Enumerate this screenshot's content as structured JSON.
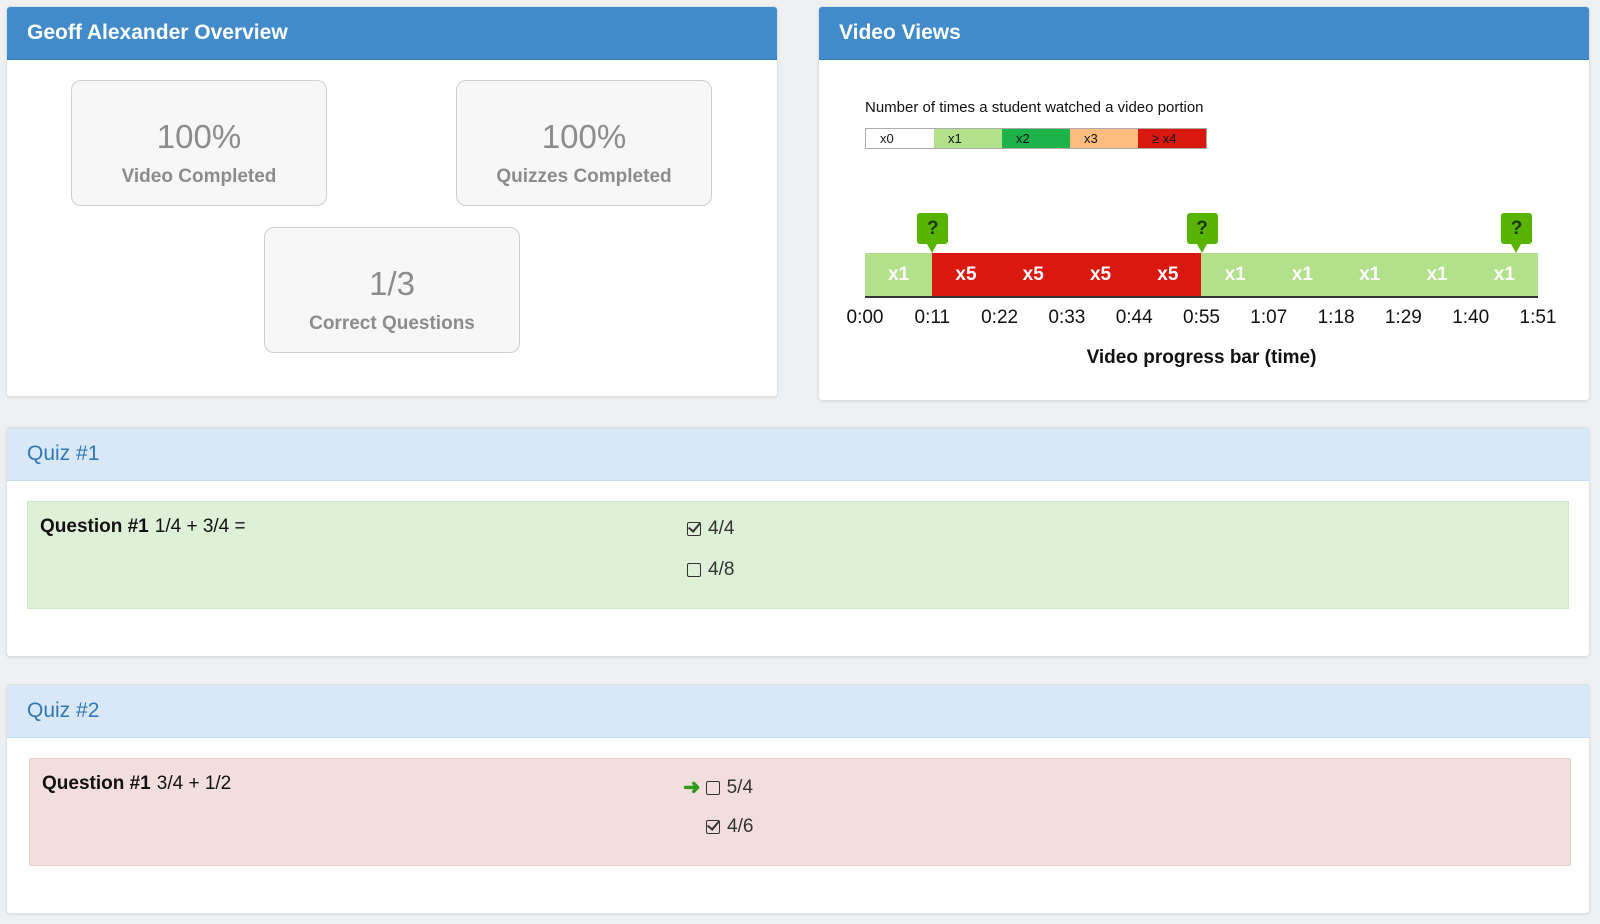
{
  "overview": {
    "title": "Geoff Alexander Overview",
    "stats": [
      {
        "value": "100%",
        "label": "Video Completed"
      },
      {
        "value": "100%",
        "label": "Quizzes Completed"
      },
      {
        "value": "1/3",
        "label": "Correct Questions"
      }
    ]
  },
  "video_views": {
    "title": "Video Views",
    "legend_title": "Number of times a student watched a video portion",
    "legend": [
      {
        "label": "x0",
        "color": "#ffffff"
      },
      {
        "label": "x1",
        "color": "#b3e08a"
      },
      {
        "label": "x2",
        "color": "#1db34a"
      },
      {
        "label": "x3",
        "color": "#fdbd7f"
      },
      {
        "label": "≥ x4",
        "color": "#d91810"
      }
    ],
    "segments": [
      "x1",
      "x5",
      "x5",
      "x5",
      "x5",
      "x1",
      "x1",
      "x1",
      "x1",
      "x1"
    ],
    "segment_colors": {
      "x1": "#b3e08a",
      "x5": "#d91810"
    },
    "ticks": [
      "0:00",
      "0:11",
      "0:22",
      "0:33",
      "0:44",
      "0:55",
      "1:07",
      "1:18",
      "1:29",
      "1:40",
      "1:51"
    ],
    "quiz_marker_symbol": "?",
    "quiz_marker_times": [
      "0:11",
      "0:55",
      "1:51"
    ],
    "x_axis_label": "Video progress bar (time)"
  },
  "quizzes": [
    {
      "title": "Quiz #1",
      "question_label": "Question #1",
      "question_text": "1/4 + 3/4 =",
      "result": "correct",
      "options": [
        {
          "text": "4/4",
          "checked": true,
          "correct_marker": false
        },
        {
          "text": "4/8",
          "checked": false,
          "correct_marker": false
        }
      ]
    },
    {
      "title": "Quiz #2",
      "question_label": "Question #1",
      "question_text": "3/4 + 1/2",
      "result": "incorrect",
      "options": [
        {
          "text": "5/4",
          "checked": false,
          "correct_marker": true
        },
        {
          "text": "4/6",
          "checked": true,
          "correct_marker": false
        }
      ]
    }
  ]
}
